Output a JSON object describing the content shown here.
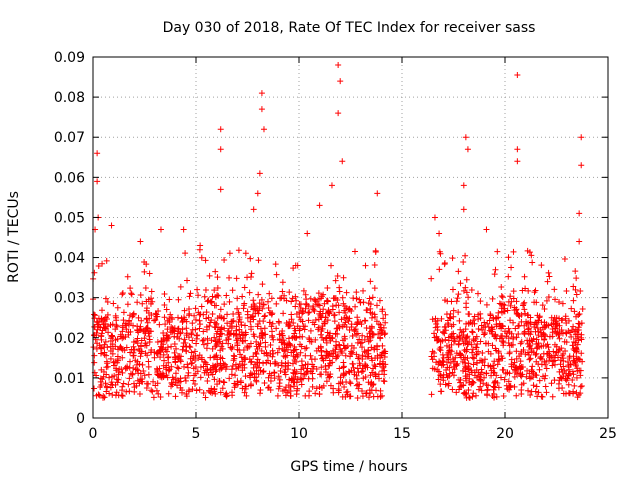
{
  "chart_data": {
    "type": "scatter",
    "title": "Day 030 of 2018, Rate Of TEC Index for receiver sass",
    "xlabel": "GPS time / hours",
    "ylabel": "ROTI / TECUs",
    "xlim": [
      0,
      25
    ],
    "ylim": [
      0,
      0.09
    ],
    "xticks": [
      "0",
      "5",
      "10",
      "15",
      "20",
      "25"
    ],
    "yticks": [
      "0",
      "0.01",
      "0.02",
      "0.03",
      "0.04",
      "0.05",
      "0.06",
      "0.07",
      "0.08",
      "0.09"
    ],
    "grid": true,
    "marker": "+",
    "color": "#ff0000",
    "data_gap_hours": [
      14.2,
      16.4
    ],
    "outliers": [
      {
        "x": 0.2,
        "y": 0.066
      },
      {
        "x": 0.2,
        "y": 0.059
      },
      {
        "x": 0.25,
        "y": 0.05
      },
      {
        "x": 0.1,
        "y": 0.047
      },
      {
        "x": 0.9,
        "y": 0.048
      },
      {
        "x": 2.3,
        "y": 0.044
      },
      {
        "x": 3.3,
        "y": 0.047
      },
      {
        "x": 4.4,
        "y": 0.047
      },
      {
        "x": 6.2,
        "y": 0.072
      },
      {
        "x": 6.2,
        "y": 0.067
      },
      {
        "x": 6.2,
        "y": 0.057
      },
      {
        "x": 8.2,
        "y": 0.081
      },
      {
        "x": 8.2,
        "y": 0.077
      },
      {
        "x": 8.3,
        "y": 0.072
      },
      {
        "x": 8.1,
        "y": 0.061
      },
      {
        "x": 8.0,
        "y": 0.056
      },
      {
        "x": 7.8,
        "y": 0.052
      },
      {
        "x": 11.9,
        "y": 0.088
      },
      {
        "x": 12.0,
        "y": 0.084
      },
      {
        "x": 11.9,
        "y": 0.076
      },
      {
        "x": 12.1,
        "y": 0.064
      },
      {
        "x": 11.6,
        "y": 0.058
      },
      {
        "x": 11.0,
        "y": 0.053
      },
      {
        "x": 13.8,
        "y": 0.056
      },
      {
        "x": 16.6,
        "y": 0.05
      },
      {
        "x": 16.8,
        "y": 0.046
      },
      {
        "x": 18.1,
        "y": 0.07
      },
      {
        "x": 18.2,
        "y": 0.067
      },
      {
        "x": 18.0,
        "y": 0.058
      },
      {
        "x": 18.0,
        "y": 0.052
      },
      {
        "x": 20.6,
        "y": 0.0855
      },
      {
        "x": 20.6,
        "y": 0.067
      },
      {
        "x": 20.6,
        "y": 0.064
      },
      {
        "x": 23.7,
        "y": 0.07
      },
      {
        "x": 23.7,
        "y": 0.063
      },
      {
        "x": 23.6,
        "y": 0.051
      },
      {
        "x": 23.6,
        "y": 0.044
      },
      {
        "x": 19.1,
        "y": 0.047
      },
      {
        "x": 10.4,
        "y": 0.046
      },
      {
        "x": 5.2,
        "y": 0.043
      }
    ]
  }
}
